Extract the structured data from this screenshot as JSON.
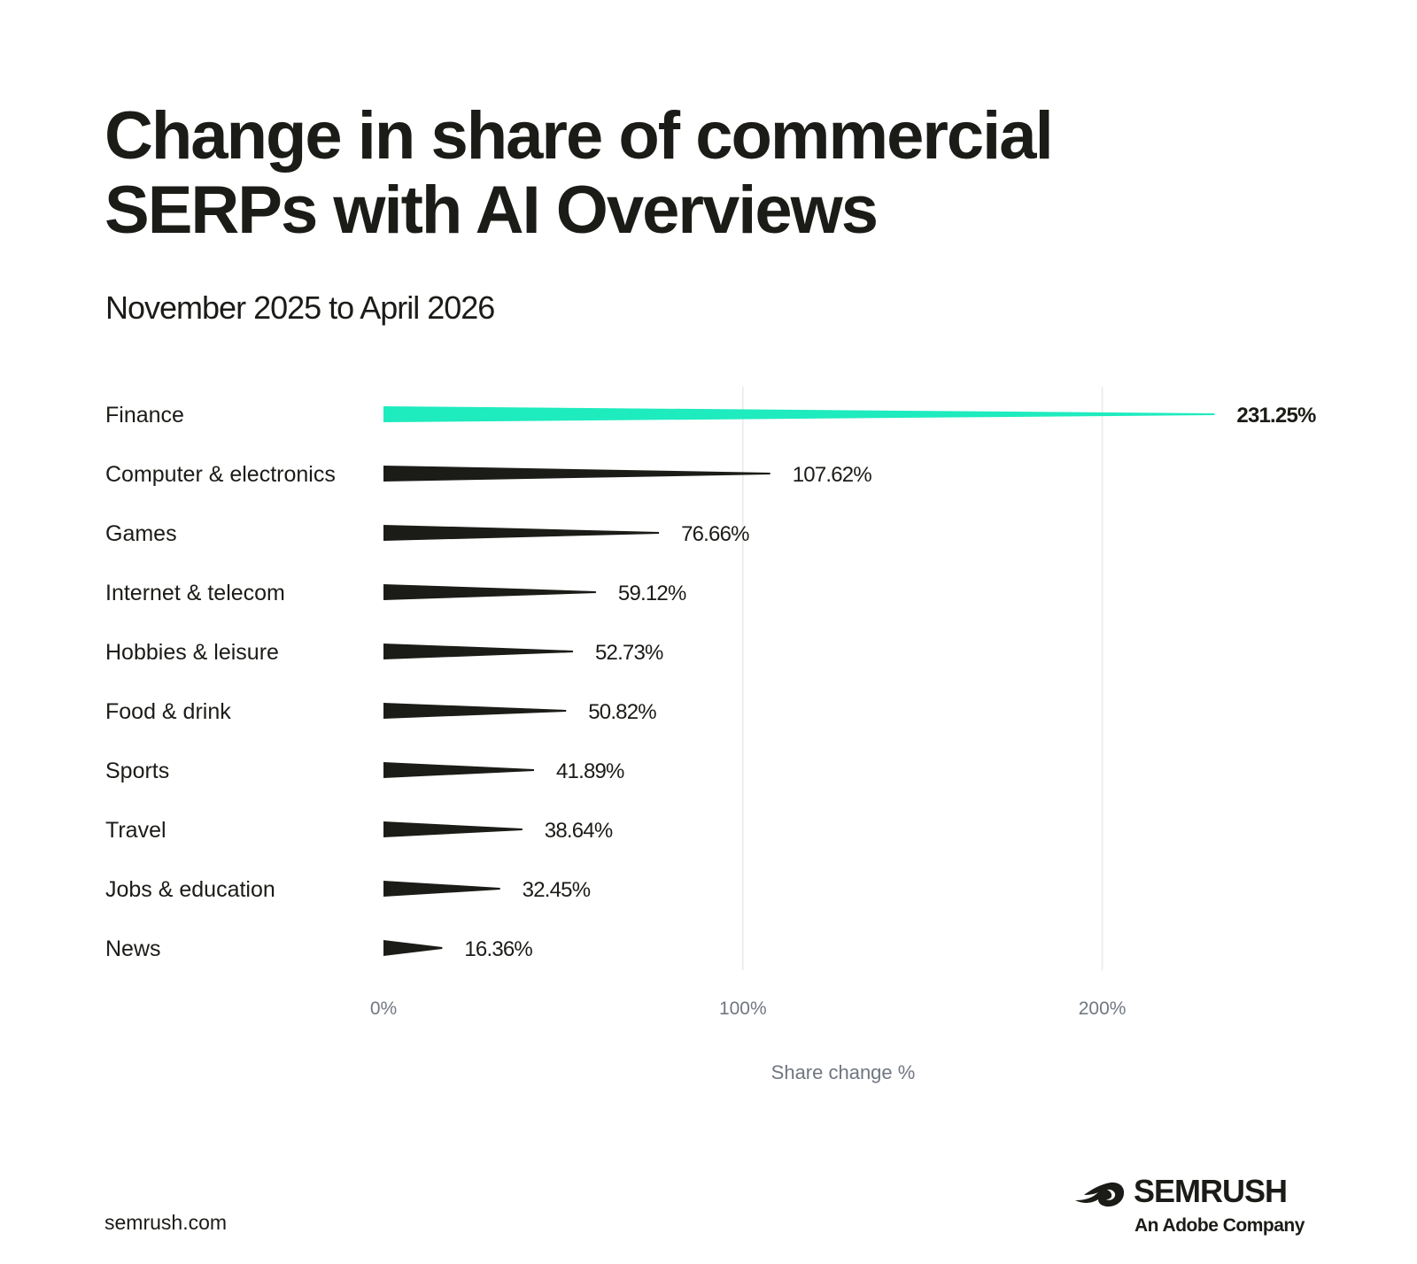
{
  "header": {
    "title": "Change in share of commercial SERPs with AI Overviews",
    "subtitle": "November 2025 to April 2026"
  },
  "footer": {
    "url": "semrush.com",
    "brand": "SEMRUSH",
    "brand_sub": "An Adobe Company"
  },
  "colors": {
    "highlight": "#1eebbe",
    "bar": "#1b1c17",
    "grid": "#e9e9e9",
    "axis_text": "#707781"
  },
  "chart_data": {
    "type": "bar",
    "orientation": "horizontal",
    "categories": [
      "Finance",
      "Computer & electronics",
      "Games",
      "Internet & telecom",
      "Hobbies & leisure",
      "Food & drink",
      "Sports",
      "Travel",
      "Jobs & education",
      "News"
    ],
    "values": [
      231.25,
      107.62,
      76.66,
      59.12,
      52.73,
      50.82,
      41.89,
      38.64,
      32.45,
      16.36
    ],
    "value_labels": [
      "231.25%",
      "107.62%",
      "76.66%",
      "59.12%",
      "52.73%",
      "50.82%",
      "41.89%",
      "38.64%",
      "32.45%",
      "16.36%"
    ],
    "highlighted_category": "Finance",
    "xlabel": "Share change %",
    "xticks": [
      0,
      100,
      200
    ],
    "xtick_labels": [
      "0%",
      "100%",
      "200%"
    ],
    "xlim": [
      0,
      231.25
    ],
    "grid": true
  }
}
